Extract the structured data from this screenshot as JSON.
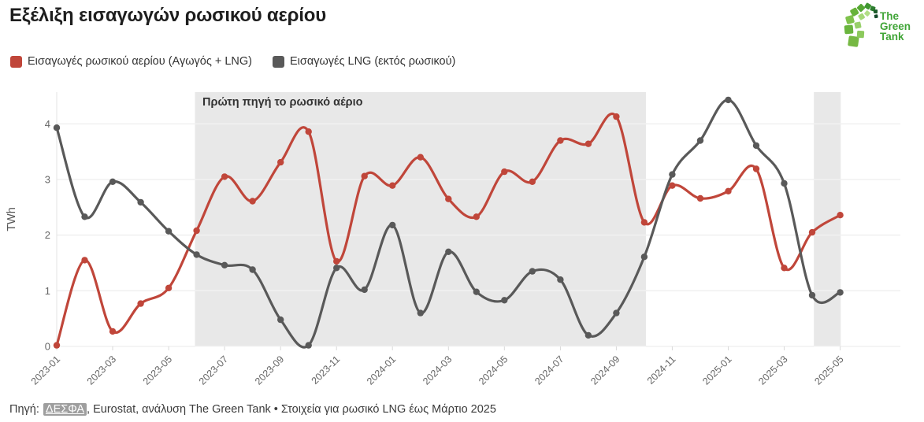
{
  "header": {
    "title": "Εξέλιξη εισαγωγών ρωσικού αερίου",
    "logo_text": [
      "The",
      "Green",
      "Tank"
    ]
  },
  "legend": [
    {
      "label": "Εισαγωγές ρωσικού αερίου (Αγωγός + LNG)",
      "color": "#c0463a"
    },
    {
      "label": "Εισαγωγές LNG (εκτός ρωσικού)",
      "color": "#595959"
    }
  ],
  "chart_data": {
    "type": "line",
    "title": "Εξέλιξη εισαγωγών ρωσικού αερίου",
    "ylabel": "TWh",
    "ylim": [
      0,
      4.57
    ],
    "yticks": [
      0,
      1,
      2,
      3,
      4
    ],
    "grid": "horizontal",
    "legend_position": "top-left",
    "x": [
      "2023-01",
      "2023-02",
      "2023-03",
      "2023-04",
      "2023-05",
      "2023-06",
      "2023-07",
      "2023-08",
      "2023-09",
      "2023-10",
      "2023-11",
      "2023-12",
      "2024-01",
      "2024-02",
      "2024-03",
      "2024-04",
      "2024-05",
      "2024-06",
      "2024-07",
      "2024-08",
      "2024-09",
      "2024-10",
      "2024-11",
      "2024-12",
      "2025-01",
      "2025-02",
      "2025-03",
      "2025-04",
      "2025-05"
    ],
    "xtick_every": 2,
    "series": [
      {
        "name": "Εισαγωγές ρωσικού αερίου (Αγωγός + LNG)",
        "color": "#c0463a",
        "values": [
          0.02,
          1.55,
          0.27,
          0.77,
          1.05,
          2.08,
          3.05,
          2.61,
          3.31,
          3.86,
          1.53,
          3.06,
          2.89,
          3.4,
          2.65,
          2.33,
          3.14,
          2.96,
          3.7,
          3.64,
          4.13,
          2.23,
          2.89,
          2.66,
          2.79,
          3.19,
          1.41,
          2.05,
          2.36
        ]
      },
      {
        "name": "Εισαγωγές LNG (εκτός ρωσικού)",
        "color": "#595959",
        "values": [
          3.93,
          2.33,
          2.96,
          2.59,
          2.07,
          1.65,
          1.46,
          1.38,
          0.48,
          0.02,
          1.41,
          1.02,
          2.18,
          0.6,
          1.7,
          0.98,
          0.83,
          1.35,
          1.2,
          0.2,
          0.6,
          1.61,
          3.09,
          3.7,
          4.43,
          3.61,
          2.93,
          0.92,
          0.97
        ]
      }
    ],
    "bands": [
      {
        "label": "Πρώτη πηγή το ρωσικό αέριο",
        "from_x": "2023-06",
        "to_x": "2024-10",
        "from_index": 4.94,
        "to_index": 21.06
      },
      {
        "label": "",
        "from_x": "2025-04",
        "to_x": "2025-05",
        "from_index": 27.06,
        "to_index": 28.02
      }
    ],
    "band_color": "#e8e8e8"
  },
  "footer": {
    "prefix": "Πηγή:",
    "source_link": "ΔΕΣΦΑ",
    "rest": ", Eurostat, ανάλυση The Green Tank • Στοιχεία για ρωσικό LNG έως Μάρτιο 2025"
  }
}
